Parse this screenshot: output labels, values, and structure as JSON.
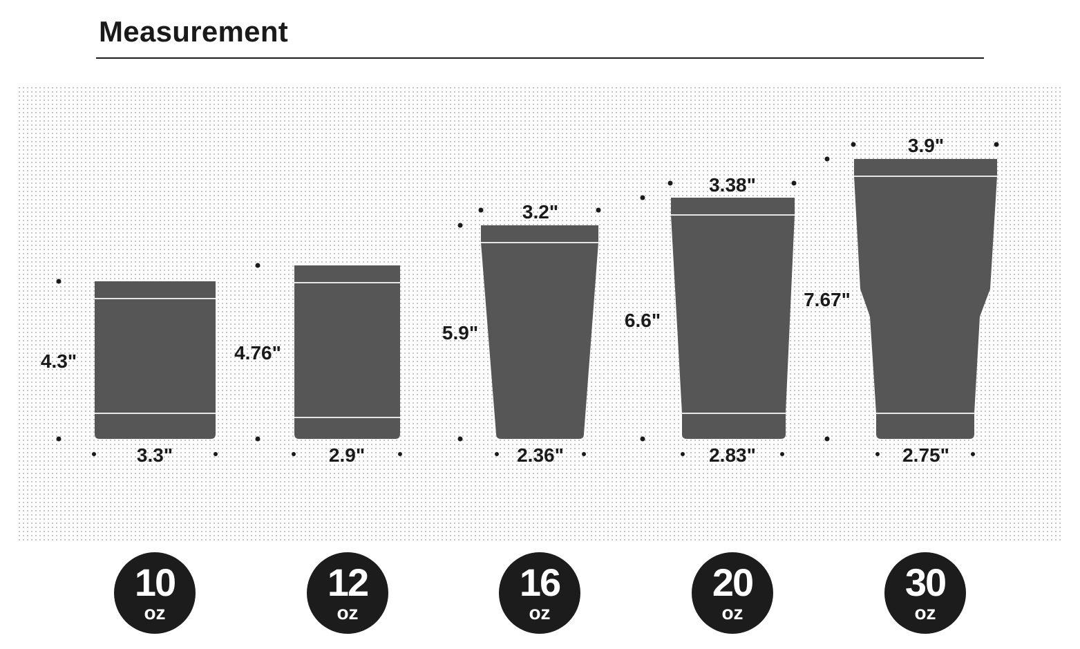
{
  "header": {
    "title": "Measurement"
  },
  "tumblers": [
    {
      "size": "10",
      "unit": "oz",
      "height": "4.3\"",
      "bottom_width": "3.3\"",
      "top_width": ""
    },
    {
      "size": "12",
      "unit": "oz",
      "height": "4.76\"",
      "bottom_width": "2.9\"",
      "top_width": ""
    },
    {
      "size": "16",
      "unit": "oz",
      "height": "5.9\"",
      "bottom_width": "2.36\"",
      "top_width": "3.2\""
    },
    {
      "size": "20",
      "unit": "oz",
      "height": "6.6\"",
      "bottom_width": "2.83\"",
      "top_width": "3.38\""
    },
    {
      "size": "30",
      "unit": "oz",
      "height": "7.67\"",
      "bottom_width": "2.75\"",
      "top_width": "3.9\""
    }
  ],
  "colors": {
    "tumbler": "#555655",
    "badge": "#1c1c1c",
    "text": "#1a1a1a",
    "band": "#e6e6e6"
  }
}
